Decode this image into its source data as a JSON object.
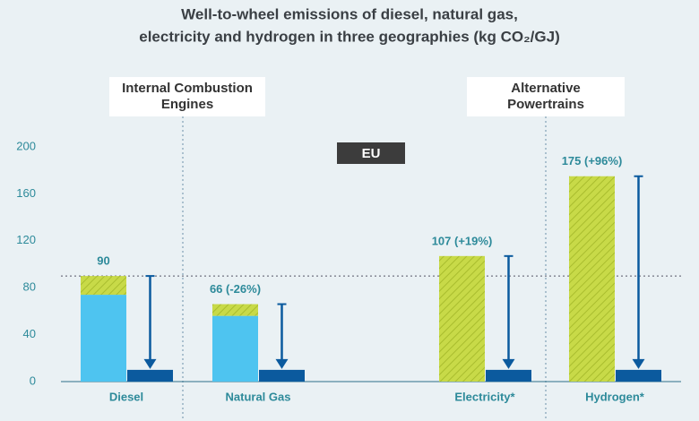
{
  "chart_data": {
    "type": "bar",
    "title_lines": [
      "Well-to-wheel emissions of diesel, natural gas,",
      "electricity and hydrogen in three geographies (kg CO₂/GJ)"
    ],
    "groups": [
      "Internal Combustion Engines",
      "Alternative Powertrains"
    ],
    "region": "EU",
    "categories": [
      "Diesel",
      "Natural Gas",
      "Electricity*",
      "Hydrogen*"
    ],
    "series": [
      {
        "color": "#4ec4f0",
        "hatch": false,
        "values": [
          74,
          56,
          0,
          0
        ]
      },
      {
        "color": "#c8da48",
        "hatch": true,
        "values": [
          16,
          10,
          107,
          175
        ]
      }
    ],
    "totals": {
      "values": [
        90,
        66,
        107,
        175
      ],
      "value_labels": [
        "90",
        "66 (-26%)",
        "107 (+19%)",
        "175 (+96%)"
      ]
    },
    "comparison": {
      "color": "#0b5a9e",
      "values": [
        10,
        10,
        10,
        10
      ]
    },
    "reference_line": 90,
    "ylim": [
      0,
      200
    ],
    "yticks": [
      0,
      40,
      80,
      120,
      160,
      200
    ]
  }
}
